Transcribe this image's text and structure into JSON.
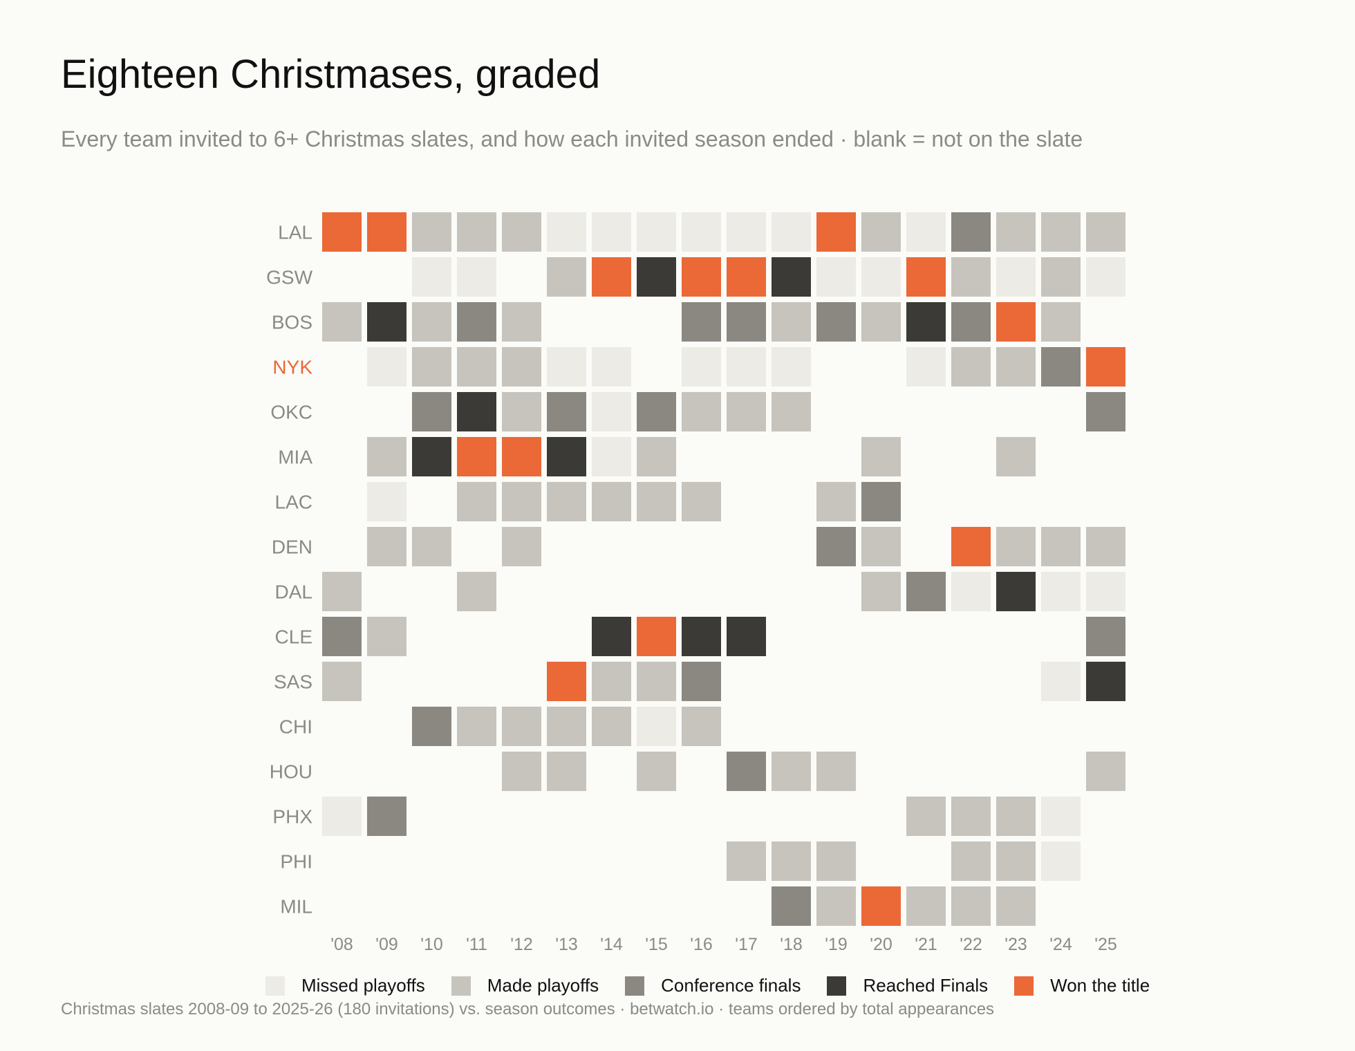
{
  "title": "Eighteen Christmases, graded",
  "subtitle": "Every team invited to 6+ Christmas slates, and how each invited season ended  ·  blank = not on the slate",
  "footnote": "Christmas slates 2008-09 to 2025-26 (180 invitations) vs. season outcomes  ·  betwatch.io  ·  teams ordered by total appearances",
  "colors": {
    "background": "#fbfbf8",
    "missed": "#ecebe6",
    "made": "#c6c4bc",
    "conf": "#8b8882",
    "finals": "#3b3a37",
    "won": "#eb6837",
    "label": "#8a8a86",
    "highlight": "#eb6837"
  },
  "legend": [
    {
      "key": "missed",
      "label": "Missed playoffs"
    },
    {
      "key": "made",
      "label": "Made playoffs"
    },
    {
      "key": "conf",
      "label": "Conference finals"
    },
    {
      "key": "finals",
      "label": "Reached Finals"
    },
    {
      "key": "won",
      "label": "Won the title"
    }
  ],
  "chart_data": {
    "type": "heatmap",
    "title": "Eighteen Christmases, graded",
    "subtitle": "Every team invited to 6+ Christmas slates, and how each invited season ended  ·  blank = not on the slate",
    "x": [
      "'08",
      "'09",
      "'10",
      "'11",
      "'12",
      "'13",
      "'14",
      "'15",
      "'16",
      "'17",
      "'18",
      "'19",
      "'20",
      "'21",
      "'22",
      "'23",
      "'24",
      "'25"
    ],
    "y": [
      "LAL",
      "GSW",
      "BOS",
      "NYK",
      "OKC",
      "MIA",
      "LAC",
      "DEN",
      "DAL",
      "CLE",
      "SAS",
      "CHI",
      "HOU",
      "PHX",
      "PHI",
      "MIL"
    ],
    "highlight_team": "NYK",
    "encoding": {
      "0": "blank",
      "1": "Missed playoffs",
      "2": "Made playoffs",
      "3": "Conference finals",
      "4": "Reached Finals",
      "5": "Won the title"
    },
    "values": [
      [
        5,
        5,
        2,
        2,
        2,
        1,
        1,
        1,
        1,
        1,
        1,
        5,
        2,
        1,
        3,
        2,
        2,
        2
      ],
      [
        0,
        0,
        1,
        1,
        0,
        2,
        5,
        4,
        5,
        5,
        4,
        1,
        1,
        5,
        2,
        1,
        2,
        1
      ],
      [
        2,
        4,
        2,
        3,
        2,
        0,
        0,
        0,
        3,
        3,
        2,
        3,
        2,
        4,
        3,
        5,
        2,
        0
      ],
      [
        0,
        1,
        2,
        2,
        2,
        1,
        1,
        0,
        1,
        1,
        1,
        0,
        0,
        1,
        2,
        2,
        3,
        5
      ],
      [
        0,
        0,
        3,
        4,
        2,
        3,
        1,
        3,
        2,
        2,
        2,
        0,
        0,
        0,
        0,
        0,
        0,
        3
      ],
      [
        0,
        2,
        4,
        5,
        5,
        4,
        1,
        2,
        0,
        0,
        0,
        0,
        2,
        0,
        0,
        2,
        0,
        0
      ],
      [
        0,
        1,
        0,
        2,
        2,
        2,
        2,
        2,
        2,
        0,
        0,
        2,
        3,
        0,
        0,
        0,
        0,
        0
      ],
      [
        0,
        2,
        2,
        0,
        2,
        0,
        0,
        0,
        0,
        0,
        0,
        3,
        2,
        0,
        5,
        2,
        2,
        2
      ],
      [
        2,
        0,
        0,
        2,
        0,
        0,
        0,
        0,
        0,
        0,
        0,
        0,
        2,
        3,
        1,
        4,
        1,
        1
      ],
      [
        3,
        2,
        0,
        0,
        0,
        0,
        4,
        5,
        4,
        4,
        0,
        0,
        0,
        0,
        0,
        0,
        0,
        3
      ],
      [
        2,
        0,
        0,
        0,
        0,
        5,
        2,
        2,
        3,
        0,
        0,
        0,
        0,
        0,
        0,
        0,
        1,
        4
      ],
      [
        0,
        0,
        3,
        2,
        2,
        2,
        2,
        1,
        2,
        0,
        0,
        0,
        0,
        0,
        0,
        0,
        0,
        0
      ],
      [
        0,
        0,
        0,
        0,
        2,
        2,
        0,
        2,
        0,
        3,
        2,
        2,
        0,
        0,
        0,
        0,
        0,
        2
      ],
      [
        1,
        3,
        0,
        0,
        0,
        0,
        0,
        0,
        0,
        0,
        0,
        0,
        0,
        2,
        2,
        2,
        1,
        0
      ],
      [
        0,
        0,
        0,
        0,
        0,
        0,
        0,
        0,
        0,
        2,
        2,
        2,
        0,
        0,
        2,
        2,
        1,
        0
      ],
      [
        0,
        0,
        0,
        0,
        0,
        0,
        0,
        0,
        0,
        0,
        3,
        2,
        5,
        2,
        2,
        2,
        0,
        0
      ]
    ]
  }
}
